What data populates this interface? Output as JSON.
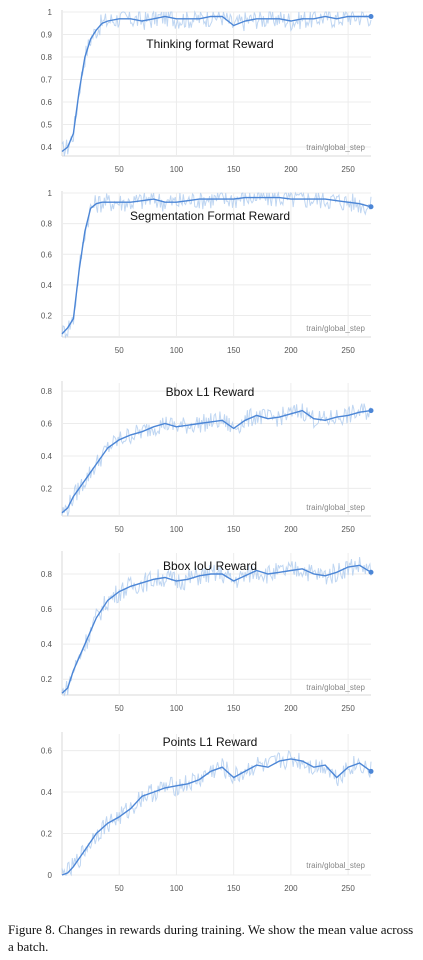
{
  "caption": "Figure 8. Changes in rewards during training. We show the mean value across a batch.",
  "colors": {
    "raw": "#aac8ee",
    "smoothed": "#4c86d6"
  },
  "chart_data": [
    {
      "type": "line",
      "title": "Thinking format Reward",
      "xlabel": "train/global_step",
      "ylabel": "",
      "xlim": [
        0,
        270
      ],
      "ylim": [
        0.36,
        1.0
      ],
      "xticks": [
        50,
        100,
        150,
        200,
        250
      ],
      "yticks": [
        0.4,
        0.5,
        0.6,
        0.7,
        0.8,
        0.9,
        1
      ],
      "grid": true,
      "series": [
        {
          "x": [
            0,
            5,
            10,
            15,
            20,
            25,
            30,
            35,
            40,
            50,
            60,
            70,
            80,
            90,
            100,
            110,
            120,
            130,
            140,
            150,
            160,
            170,
            180,
            190,
            200,
            210,
            220,
            230,
            240,
            250,
            260,
            270
          ],
          "y": [
            0.38,
            0.4,
            0.46,
            0.65,
            0.8,
            0.88,
            0.92,
            0.95,
            0.96,
            0.97,
            0.97,
            0.96,
            0.97,
            0.98,
            0.97,
            0.97,
            0.97,
            0.98,
            0.98,
            0.94,
            0.96,
            0.97,
            0.97,
            0.97,
            0.96,
            0.97,
            0.97,
            0.98,
            0.97,
            0.98,
            0.98,
            0.98
          ]
        }
      ]
    },
    {
      "type": "line",
      "title": "Segmentation Format Reward",
      "xlabel": "train/global_step",
      "ylabel": "",
      "xlim": [
        0,
        270
      ],
      "ylim": [
        0.06,
        1.0
      ],
      "xticks": [
        50,
        100,
        150,
        200,
        250
      ],
      "yticks": [
        0.2,
        0.4,
        0.6,
        0.8,
        1
      ],
      "grid": true,
      "series": [
        {
          "x": [
            0,
            5,
            10,
            15,
            20,
            25,
            30,
            35,
            40,
            50,
            60,
            70,
            80,
            90,
            100,
            110,
            120,
            130,
            140,
            150,
            160,
            170,
            180,
            190,
            200,
            210,
            220,
            230,
            240,
            250,
            260,
            270
          ],
          "y": [
            0.08,
            0.12,
            0.18,
            0.5,
            0.75,
            0.9,
            0.93,
            0.94,
            0.94,
            0.94,
            0.94,
            0.95,
            0.96,
            0.94,
            0.94,
            0.95,
            0.96,
            0.96,
            0.96,
            0.96,
            0.97,
            0.97,
            0.97,
            0.97,
            0.96,
            0.96,
            0.96,
            0.96,
            0.95,
            0.94,
            0.93,
            0.91
          ]
        }
      ]
    },
    {
      "type": "line",
      "title": "Bbox L1 Reward",
      "xlabel": "train/global_step",
      "ylabel": "",
      "xlim": [
        0,
        270
      ],
      "ylim": [
        0.03,
        0.85
      ],
      "xticks": [
        50,
        100,
        150,
        200,
        250
      ],
      "yticks": [
        0.2,
        0.4,
        0.6,
        0.8
      ],
      "grid": true,
      "series": [
        {
          "x": [
            0,
            5,
            10,
            20,
            30,
            40,
            50,
            60,
            70,
            80,
            90,
            100,
            110,
            120,
            130,
            140,
            150,
            160,
            170,
            180,
            190,
            200,
            210,
            220,
            230,
            240,
            250,
            260,
            270
          ],
          "y": [
            0.05,
            0.08,
            0.15,
            0.25,
            0.35,
            0.45,
            0.5,
            0.53,
            0.55,
            0.58,
            0.6,
            0.58,
            0.59,
            0.6,
            0.61,
            0.62,
            0.57,
            0.62,
            0.65,
            0.63,
            0.64,
            0.66,
            0.68,
            0.63,
            0.62,
            0.64,
            0.65,
            0.67,
            0.68
          ]
        }
      ]
    },
    {
      "type": "line",
      "title": "Bbox IoU Reward",
      "xlabel": "train/global_step",
      "ylabel": "",
      "xlim": [
        0,
        270
      ],
      "ylim": [
        0.11,
        0.92
      ],
      "xticks": [
        50,
        100,
        150,
        200,
        250
      ],
      "yticks": [
        0.2,
        0.4,
        0.6,
        0.8
      ],
      "grid": true,
      "series": [
        {
          "x": [
            0,
            5,
            10,
            20,
            30,
            40,
            50,
            60,
            70,
            80,
            90,
            100,
            110,
            120,
            130,
            140,
            150,
            160,
            170,
            180,
            190,
            200,
            210,
            220,
            230,
            240,
            250,
            260,
            270
          ],
          "y": [
            0.12,
            0.15,
            0.25,
            0.4,
            0.55,
            0.65,
            0.7,
            0.73,
            0.75,
            0.77,
            0.78,
            0.76,
            0.77,
            0.79,
            0.8,
            0.8,
            0.76,
            0.79,
            0.82,
            0.8,
            0.81,
            0.82,
            0.83,
            0.8,
            0.79,
            0.81,
            0.84,
            0.85,
            0.81
          ]
        }
      ]
    },
    {
      "type": "line",
      "title": "Points L1 Reward",
      "xlabel": "train/global_step",
      "ylabel": "",
      "xlim": [
        0,
        270
      ],
      "ylim": [
        0.0,
        0.68
      ],
      "xticks": [
        50,
        100,
        150,
        200,
        250
      ],
      "yticks": [
        0,
        0.2,
        0.4,
        0.6
      ],
      "grid": true,
      "series": [
        {
          "x": [
            0,
            5,
            10,
            20,
            30,
            40,
            50,
            60,
            70,
            80,
            90,
            100,
            110,
            120,
            130,
            140,
            150,
            160,
            170,
            180,
            190,
            200,
            210,
            220,
            230,
            240,
            250,
            260,
            270
          ],
          "y": [
            0.0,
            0.01,
            0.04,
            0.12,
            0.2,
            0.25,
            0.28,
            0.32,
            0.38,
            0.4,
            0.42,
            0.43,
            0.44,
            0.46,
            0.5,
            0.52,
            0.47,
            0.5,
            0.53,
            0.52,
            0.55,
            0.56,
            0.55,
            0.52,
            0.53,
            0.47,
            0.52,
            0.54,
            0.5
          ]
        }
      ]
    }
  ]
}
